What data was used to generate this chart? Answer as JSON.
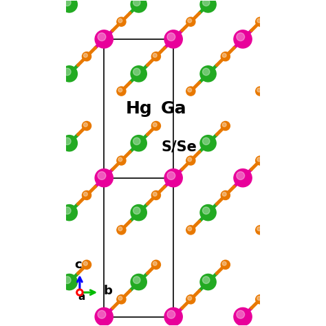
{
  "bg_color": "#ffffff",
  "c_Hg": "#e8009a",
  "c_Ga": "#22aa22",
  "c_S": "#e87800",
  "c_cell": "#000000",
  "c_bond_Hg": "#e8009a",
  "c_bond_Ga": "#22aa22",
  "c_bond_S": "#e87800",
  "r_Hg": 0.13,
  "r_Ga": 0.115,
  "r_S": 0.065,
  "bond_lw": 3.5,
  "cell_lw": 1.2,
  "label_fs": 15,
  "axis_fs": 13,
  "xlim": [
    -0.55,
    2.25
  ],
  "ylim": [
    -0.12,
    4.55
  ],
  "figsize": [
    4.74,
    4.74
  ],
  "dpi": 100
}
